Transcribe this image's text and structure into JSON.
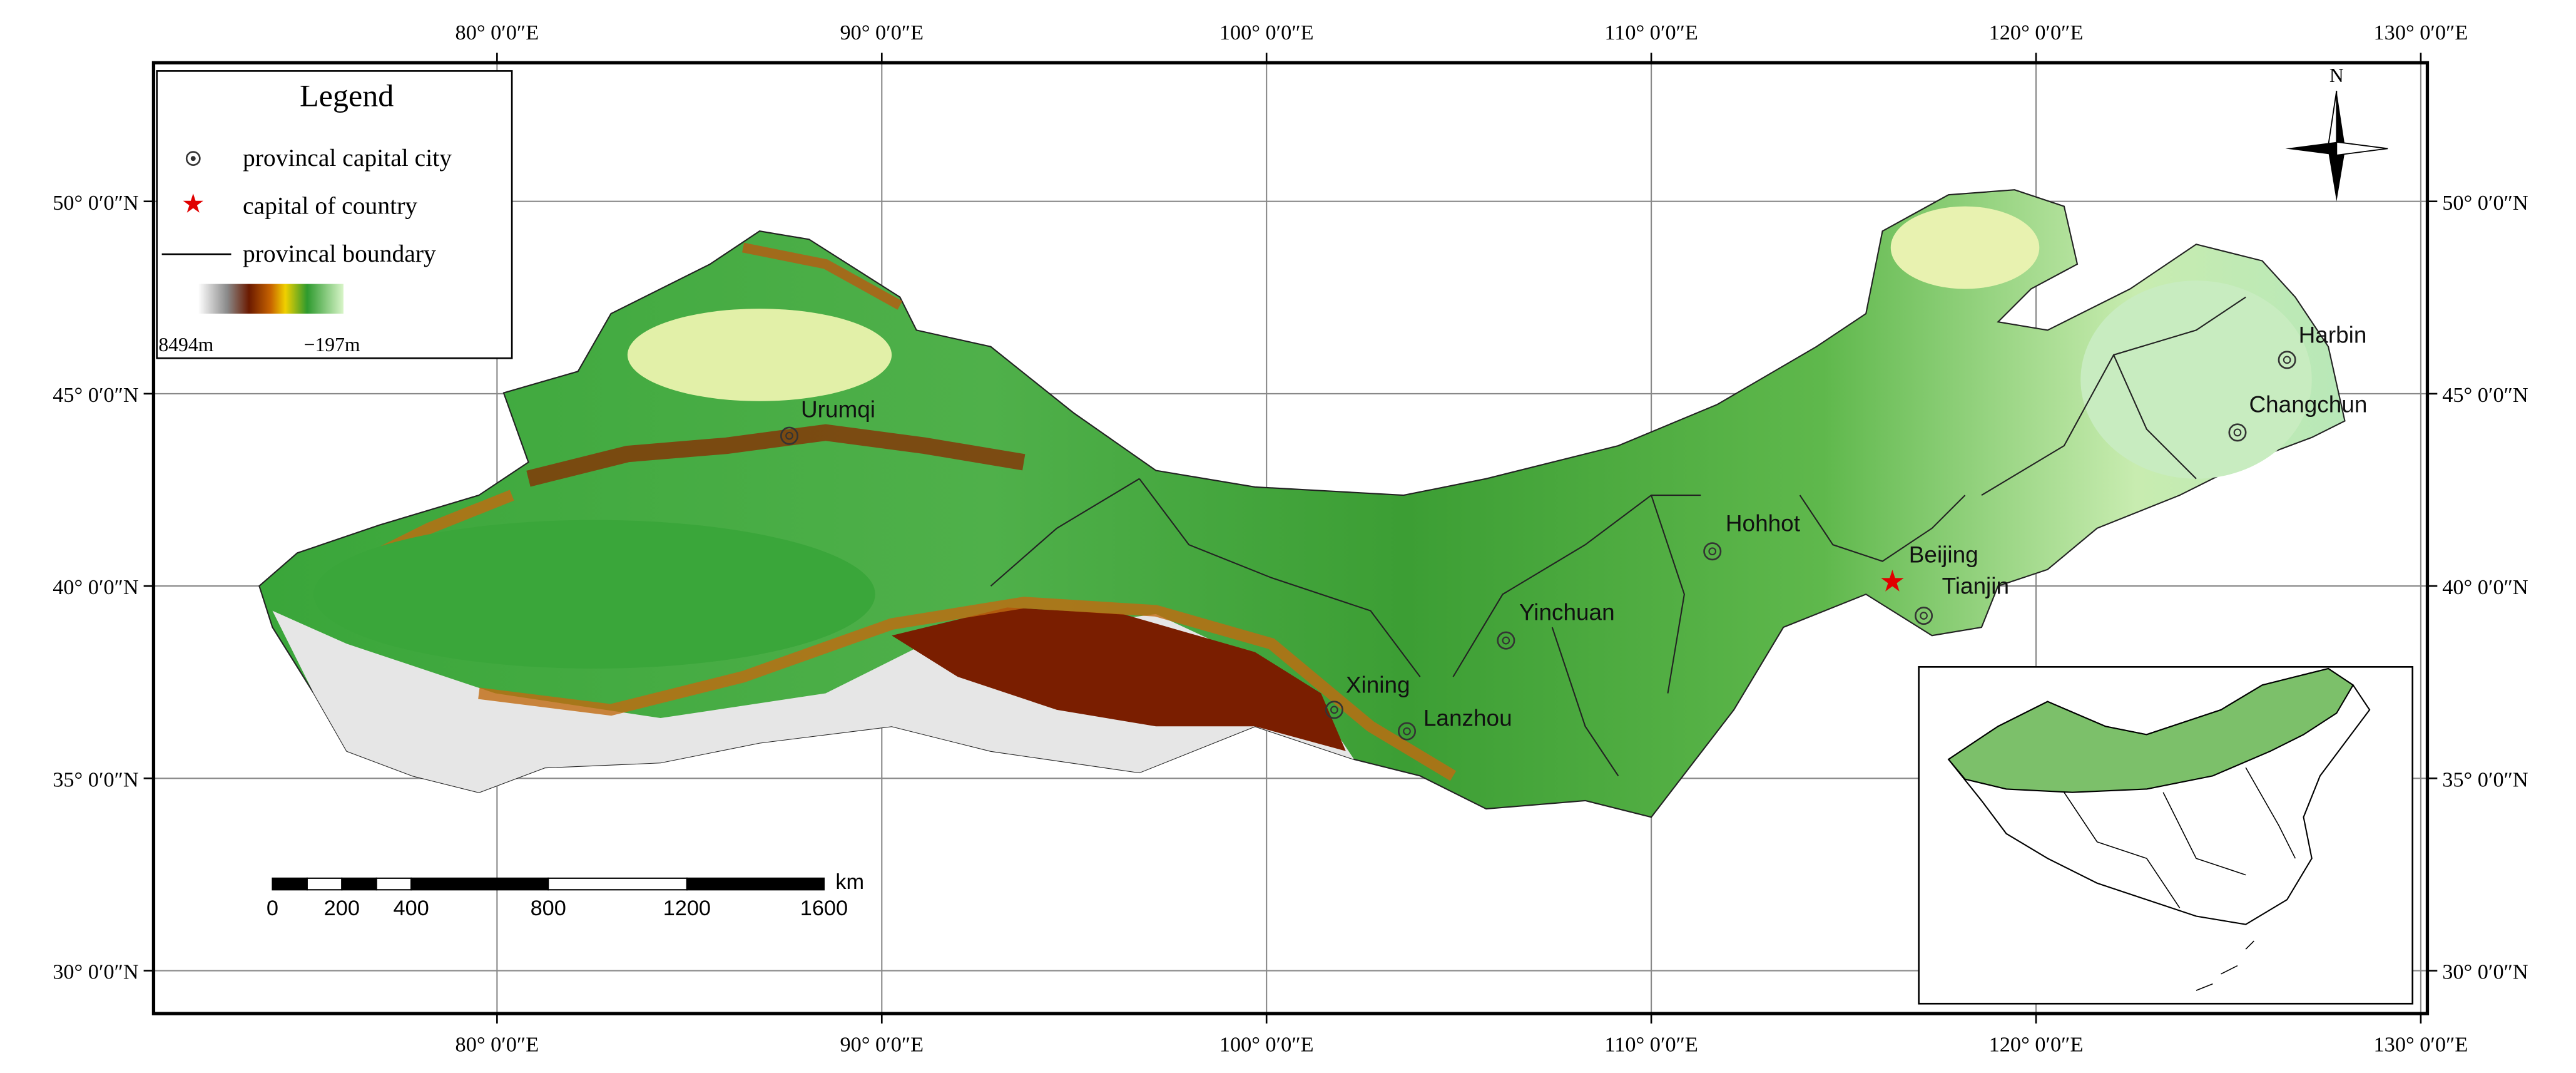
{
  "legend": {
    "title": "Legend",
    "items": [
      "provincal capital city",
      "capital of country",
      "provincal boundary"
    ],
    "elevation_max": "8494m",
    "elevation_min": "−197m"
  },
  "graticule": {
    "longitudes": [
      "80° 0′0″E",
      "90° 0′0″E",
      "100° 0′0″E",
      "110° 0′0″E",
      "120° 0′0″E",
      "130° 0′0″E"
    ],
    "latitudes": [
      "50° 0′0″N",
      "45° 0′0″N",
      "40° 0′0″N",
      "35° 0′0″N",
      "30° 0′0″N"
    ]
  },
  "cities": [
    "Urumqi",
    "Hohhot",
    "Yinchuan",
    "Xining",
    "Lanzhou",
    "Beijing",
    "Tianjin",
    "Harbin",
    "Changchun"
  ],
  "scale_bar": {
    "labels": [
      "0",
      "200",
      "400",
      "800",
      "1200",
      "1600"
    ],
    "unit": "km"
  },
  "north_arrow": "N"
}
